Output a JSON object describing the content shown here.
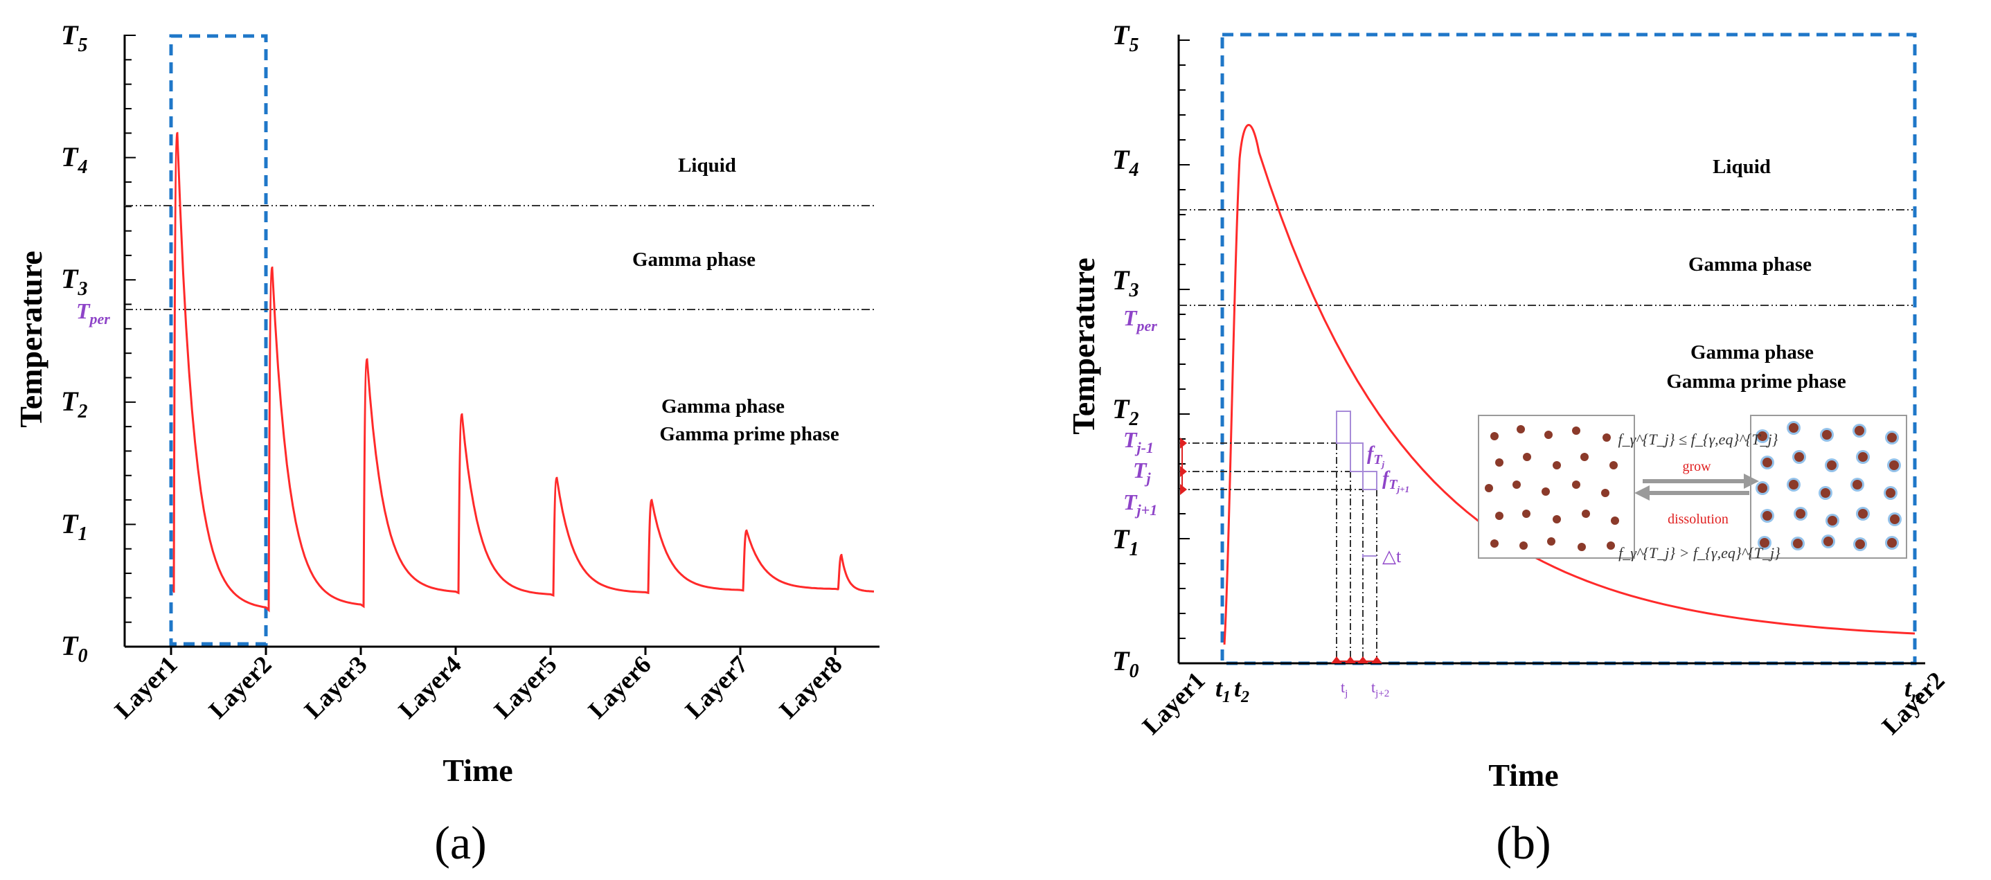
{
  "chart_data": [
    {
      "type": "line",
      "panel_label": "(a)",
      "xlabel": "Time",
      "ylabel": "Temperature",
      "y_ticks": [
        {
          "base": "T",
          "sub": "0"
        },
        {
          "base": "T",
          "sub": "1"
        },
        {
          "base": "T",
          "sub": "2"
        },
        {
          "base": "T",
          "sub": "3"
        },
        {
          "base": "T",
          "sub": "4"
        },
        {
          "base": "T",
          "sub": "5"
        }
      ],
      "tper_label": {
        "base": "T",
        "sub": "per"
      },
      "ylim": [
        0,
        5
      ],
      "x_ticks": [
        "Layer1",
        "Layer2",
        "Layer3",
        "Layer4",
        "Layer5",
        "Layer6",
        "Layer7",
        "Layer8"
      ],
      "xlim": [
        0,
        7.4
      ],
      "reference_lines": [
        {
          "name": "liquidus",
          "y": 3.6
        },
        {
          "name": "T_per",
          "y": 2.75
        }
      ],
      "region_labels": [
        "Liquid",
        "Gamma  phase",
        "Gamma phase",
        "Gamma prime phase"
      ],
      "peaks": [
        {
          "layer": "Layer1",
          "peak": 4.2,
          "end": 0.3
        },
        {
          "layer": "Layer2",
          "peak": 3.1,
          "end": 0.33
        },
        {
          "layer": "Layer3",
          "peak": 2.35,
          "end": 0.44
        },
        {
          "layer": "Layer4",
          "peak": 1.9,
          "end": 0.42
        },
        {
          "layer": "Layer5",
          "peak": 1.38,
          "end": 0.44
        },
        {
          "layer": "Layer6",
          "peak": 1.2,
          "end": 0.46
        },
        {
          "layer": "Layer7",
          "peak": 0.95,
          "end": 0.47
        },
        {
          "layer": "Layer8",
          "peak": 0.75,
          "end": 0.45
        }
      ],
      "highlight_box": {
        "from": "Layer1",
        "to": "Layer2"
      }
    },
    {
      "type": "line",
      "panel_label": "(b)",
      "xlabel": "Time",
      "ylabel": "Temperature",
      "y_ticks": [
        {
          "base": "T",
          "sub": "0"
        },
        {
          "base": "T",
          "sub": "1"
        },
        {
          "base": "T",
          "sub": "2"
        },
        {
          "base": "T",
          "sub": "3"
        },
        {
          "base": "T",
          "sub": "4"
        },
        {
          "base": "T",
          "sub": "5"
        }
      ],
      "tper_label": {
        "base": "T",
        "sub": "per"
      },
      "ylim": [
        0,
        5
      ],
      "x_end_labels": [
        "Layer1",
        "Layer2"
      ],
      "time_labels": [
        {
          "base": "t",
          "sub": "1"
        },
        {
          "base": "t",
          "sub": "2"
        },
        {
          "base": "t",
          "sub": "n"
        }
      ],
      "reference_lines": [
        {
          "name": "liquidus",
          "y": 3.6
        },
        {
          "name": "T_per",
          "y": 2.9
        }
      ],
      "region_labels": [
        "Liquid",
        "Gamma  phase",
        "Gamma phase",
        "Gamma prime phase"
      ],
      "temp_markers": [
        {
          "base": "T",
          "sub": "j-1",
          "y": 1.8
        },
        {
          "base": "T",
          "sub": "j",
          "y": 1.55
        },
        {
          "base": "T",
          "sub": "j+1",
          "y": 1.4
        }
      ],
      "time_markers": [
        {
          "base": "t",
          "sub": "j"
        },
        {
          "base": "t",
          "sub": "j+2"
        }
      ],
      "fraction_labels": [
        {
          "base": "f",
          "sub": "T",
          "subsub": "j"
        },
        {
          "base": "f",
          "sub": "T",
          "subsub": "j+1"
        }
      ],
      "delta_t_label": "△t",
      "inset": {
        "arrow_top_label": "grow",
        "arrow_bottom_label": "dissolution",
        "condition_top": "f_γ^{T_j} ≤ f_{γ,eq}^{T_j}",
        "condition_bottom": "f_γ^{T_j} > f_{γ,eq}^{T_j}"
      }
    }
  ],
  "colors": {
    "curve": "#ff2a2a",
    "box": "#1f77c8",
    "accent_purple": "#8e44c8",
    "marker_red": "#e02020",
    "particle": "#8b3a2a",
    "particle_halo": "#3d8fd8",
    "grow_text": "#e02020"
  }
}
